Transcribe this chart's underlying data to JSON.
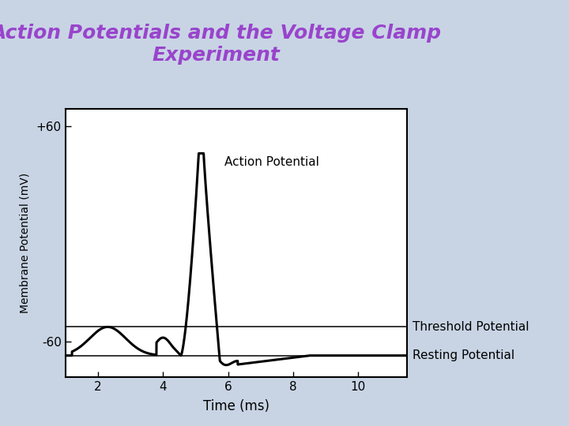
{
  "title_line1": "Action Potentials and the Voltage Clamp",
  "title_line2": "Experiment",
  "title_color": "#9944CC",
  "title_fontsize": 18,
  "title_style": "italic",
  "xlabel": "Time (ms)",
  "ylabel": "Membrane Potential (mV)",
  "xlim": [
    1,
    11.5
  ],
  "ylim": [
    -80,
    70
  ],
  "yticks": [
    -60,
    60
  ],
  "ytick_labels": [
    "-60",
    "+60"
  ],
  "xticks": [
    2,
    4,
    6,
    8,
    10
  ],
  "resting_potential": -68,
  "threshold_potential": -52,
  "action_potential_label": "Action Potential",
  "threshold_label": "Threshold Potential",
  "resting_label": "Resting Potential",
  "bg_color": "#C8D4E4",
  "plot_bg_color": "#FFFFFF",
  "line_color": "#000000",
  "line_width": 2.2,
  "annotation_fontsize": 11
}
